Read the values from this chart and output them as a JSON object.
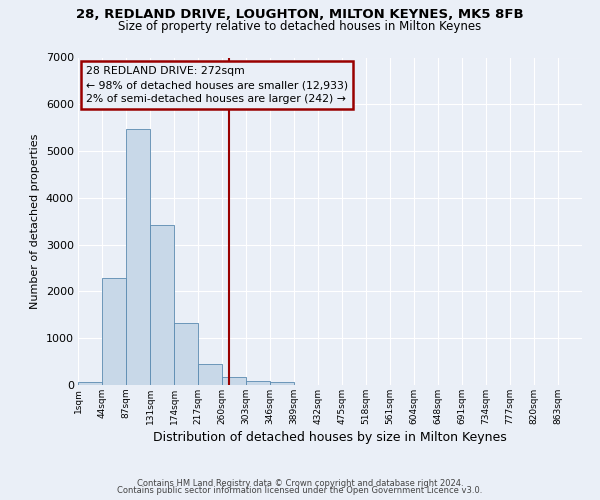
{
  "title1": "28, REDLAND DRIVE, LOUGHTON, MILTON KEYNES, MK5 8FB",
  "title2": "Size of property relative to detached houses in Milton Keynes",
  "xlabel": "Distribution of detached houses by size in Milton Keynes",
  "ylabel": "Number of detached properties",
  "bin_labels": [
    "1sqm",
    "44sqm",
    "87sqm",
    "131sqm",
    "174sqm",
    "217sqm",
    "260sqm",
    "303sqm",
    "346sqm",
    "389sqm",
    "432sqm",
    "475sqm",
    "518sqm",
    "561sqm",
    "604sqm",
    "648sqm",
    "691sqm",
    "734sqm",
    "777sqm",
    "820sqm",
    "863sqm"
  ],
  "bar_heights": [
    70,
    2280,
    5480,
    3430,
    1330,
    440,
    175,
    90,
    55,
    0,
    0,
    0,
    0,
    0,
    0,
    0,
    0,
    0,
    0,
    0
  ],
  "bar_color": "#c8d8e8",
  "bar_edge_color": "#5a8ab0",
  "vline_x": 272,
  "vline_color": "#990000",
  "annotation_title": "28 REDLAND DRIVE: 272sqm",
  "annotation_line1": "← 98% of detached houses are smaller (12,933)",
  "annotation_line2": "2% of semi-detached houses are larger (242) →",
  "annotation_box_color": "#990000",
  "ylim": [
    0,
    7000
  ],
  "yticks": [
    0,
    1000,
    2000,
    3000,
    4000,
    5000,
    6000,
    7000
  ],
  "footer1": "Contains HM Land Registry data © Crown copyright and database right 2024.",
  "footer2": "Contains public sector information licensed under the Open Government Licence v3.0.",
  "background_color": "#eaeff7",
  "grid_color": "#ffffff"
}
